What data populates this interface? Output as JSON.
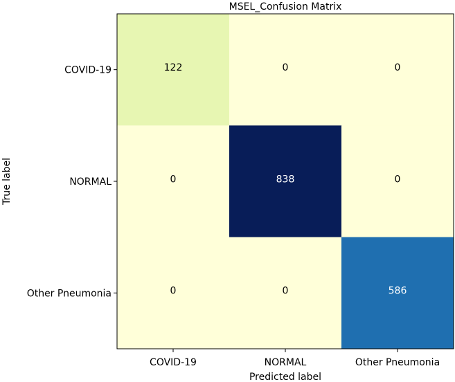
{
  "chart_data": {
    "type": "heatmap",
    "title": "MSEL_Confusion Matrix",
    "xlabel": "Predicted label",
    "ylabel": "True label",
    "x_categories": [
      "COVID-19",
      "NORMAL",
      "Other Pneumonia"
    ],
    "y_categories": [
      "COVID-19",
      "NORMAL",
      "Other Pneumonia"
    ],
    "values": [
      [
        122,
        0,
        0
      ],
      [
        0,
        838,
        0
      ],
      [
        0,
        0,
        586
      ]
    ],
    "colormap": "YlGnBu",
    "vmin": 0,
    "vmax": 838,
    "colors": {
      "zero": "#ffffd9",
      "c122": "#e7f6b2",
      "c586": "#1f6fb0",
      "c838": "#081d58",
      "light_text": "#ffffff",
      "dark_text": "#000000"
    }
  }
}
